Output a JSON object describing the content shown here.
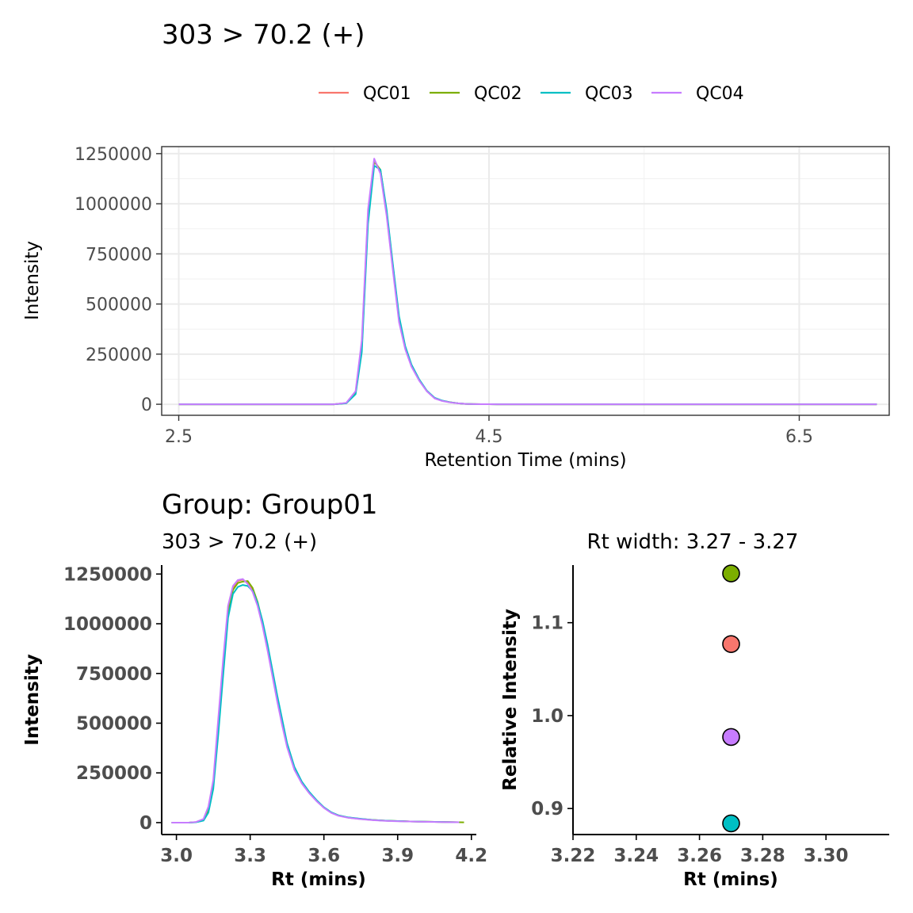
{
  "chart_data": [
    {
      "type": "line",
      "title": "303 > 70.2 (+)",
      "xlabel": "Retention Time (mins)",
      "ylabel": "Intensity",
      "xlim": [
        2.39,
        7.08
      ],
      "ylim": [
        -55000,
        1285000
      ],
      "x_ticks": [
        2.5,
        4.5,
        6.5
      ],
      "x_tick_labels": [
        "2.5",
        "4.5",
        "6.5"
      ],
      "y_ticks": [
        0,
        250000,
        500000,
        750000,
        1000000,
        1250000
      ],
      "y_tick_labels": [
        "0",
        "250000",
        "500000",
        "750000",
        "1000000",
        "1250000"
      ],
      "legend_position": "top",
      "grid": true,
      "series": [
        {
          "name": "QC01",
          "color": "#F8766D",
          "x": [
            2.5,
            3.0,
            3.5,
            3.58,
            3.64,
            3.68,
            3.72,
            3.76,
            3.8,
            3.84,
            3.88,
            3.92,
            3.96,
            4.0,
            4.05,
            4.1,
            4.15,
            4.2,
            4.25,
            4.3,
            4.35,
            4.4,
            4.45,
            4.5,
            4.55,
            4.6,
            4.7,
            4.8,
            4.9,
            5.0,
            5.2,
            5.5,
            6.0,
            6.5,
            7.0
          ],
          "y": [
            0,
            0,
            0,
            6000,
            60000,
            300000,
            950000,
            1220000,
            1160000,
            950000,
            680000,
            420000,
            280000,
            190000,
            120000,
            65000,
            30000,
            17000,
            10000,
            5000,
            2000,
            800,
            300,
            100,
            0,
            0,
            0,
            0,
            0,
            0,
            0,
            0,
            0,
            0,
            0
          ]
        },
        {
          "name": "QC02",
          "color": "#7CAE00",
          "x": [
            2.5,
            3.0,
            3.5,
            3.58,
            3.64,
            3.68,
            3.72,
            3.76,
            3.8,
            3.84,
            3.88,
            3.92,
            3.96,
            4.0,
            4.05,
            4.1,
            4.15,
            4.2,
            4.25,
            4.3,
            4.35,
            4.4,
            4.45,
            4.5,
            4.55,
            4.6,
            4.7,
            4.8,
            4.9,
            5.0,
            5.2,
            5.5,
            6.0,
            6.5,
            7.0
          ],
          "y": [
            0,
            0,
            0,
            6000,
            55000,
            280000,
            930000,
            1210000,
            1170000,
            960000,
            690000,
            430000,
            285000,
            195000,
            122000,
            66000,
            31000,
            17000,
            10000,
            5000,
            2000,
            800,
            300,
            100,
            0,
            0,
            0,
            0,
            0,
            0,
            0,
            0,
            0,
            0,
            0
          ]
        },
        {
          "name": "QC03",
          "color": "#00BFC4",
          "x": [
            2.5,
            3.0,
            3.5,
            3.58,
            3.64,
            3.68,
            3.72,
            3.76,
            3.8,
            3.84,
            3.88,
            3.92,
            3.96,
            4.0,
            4.05,
            4.1,
            4.15,
            4.2,
            4.25,
            4.3,
            4.35,
            4.4,
            4.45,
            4.5,
            4.55,
            4.6,
            4.7,
            4.8,
            4.9,
            5.0,
            5.2,
            5.5,
            6.0,
            6.5,
            7.0
          ],
          "y": [
            0,
            0,
            0,
            5000,
            50000,
            260000,
            900000,
            1190000,
            1170000,
            970000,
            700000,
            440000,
            290000,
            198000,
            124000,
            67000,
            32000,
            18000,
            10000,
            5000,
            2000,
            800,
            300,
            100,
            0,
            0,
            0,
            0,
            0,
            0,
            0,
            0,
            0,
            0,
            0
          ]
        },
        {
          "name": "QC04",
          "color": "#C77CFF",
          "x": [
            2.5,
            3.0,
            3.5,
            3.58,
            3.64,
            3.68,
            3.72,
            3.76,
            3.8,
            3.84,
            3.88,
            3.92,
            3.96,
            4.0,
            4.05,
            4.1,
            4.15,
            4.2,
            4.25,
            4.3,
            4.35,
            4.4,
            4.45,
            4.5,
            4.55,
            4.6,
            4.7,
            4.8,
            4.9,
            5.0,
            5.2,
            5.5,
            6.0,
            6.5,
            7.0
          ],
          "y": [
            0,
            0,
            0,
            7000,
            65000,
            320000,
            970000,
            1225000,
            1150000,
            940000,
            670000,
            410000,
            275000,
            188000,
            118000,
            64000,
            29000,
            16000,
            9000,
            5000,
            2000,
            800,
            300,
            100,
            0,
            0,
            0,
            0,
            0,
            0,
            0,
            0,
            0,
            0,
            0
          ]
        }
      ]
    },
    {
      "type": "line",
      "group_title": "Group: Group01",
      "title": "303 > 70.2 (+)",
      "xlabel": "Rt (mins)",
      "ylabel": "Intensity",
      "xlim": [
        2.94,
        4.22
      ],
      "ylim": [
        -60000,
        1295000
      ],
      "x_ticks": [
        3.0,
        3.3,
        3.6,
        3.9,
        4.2
      ],
      "x_tick_labels": [
        "3.0",
        "3.3",
        "3.6",
        "3.9",
        "4.2"
      ],
      "y_ticks": [
        0,
        250000,
        500000,
        750000,
        1000000,
        1250000
      ],
      "y_tick_labels": [
        "0",
        "250000",
        "500000",
        "750000",
        "1000000",
        "1250000"
      ],
      "grid": false,
      "series": [
        {
          "name": "QC01",
          "color": "#F8766D",
          "x": [
            2.98,
            3.05,
            3.08,
            3.11,
            3.13,
            3.15,
            3.17,
            3.19,
            3.21,
            3.23,
            3.25,
            3.27,
            3.29,
            3.31,
            3.33,
            3.35,
            3.37,
            3.39,
            3.41,
            3.43,
            3.45,
            3.48,
            3.51,
            3.54,
            3.57,
            3.6,
            3.63,
            3.66,
            3.7,
            3.75,
            3.8,
            3.85,
            3.9,
            3.95,
            4.0,
            4.05,
            4.1,
            4.15
          ],
          "y": [
            0,
            0,
            3000,
            15000,
            70000,
            200000,
            500000,
            800000,
            1080000,
            1180000,
            1215000,
            1222000,
            1205000,
            1170000,
            1100000,
            1000000,
            880000,
            750000,
            620000,
            500000,
            390000,
            270000,
            200000,
            150000,
            110000,
            75000,
            50000,
            35000,
            25000,
            18000,
            13000,
            10000,
            8000,
            6000,
            5000,
            4000,
            3000,
            2000
          ]
        },
        {
          "name": "QC02",
          "color": "#7CAE00",
          "x": [
            2.98,
            3.05,
            3.08,
            3.11,
            3.13,
            3.15,
            3.17,
            3.19,
            3.21,
            3.23,
            3.25,
            3.27,
            3.29,
            3.31,
            3.33,
            3.35,
            3.37,
            3.39,
            3.41,
            3.43,
            3.45,
            3.48,
            3.51,
            3.54,
            3.57,
            3.6,
            3.63,
            3.66,
            3.7,
            3.75,
            3.8,
            3.85,
            3.9,
            3.95,
            4.0,
            4.05,
            4.1,
            4.15,
            4.17
          ],
          "y": [
            0,
            0,
            2500,
            12000,
            60000,
            185000,
            470000,
            770000,
            1060000,
            1170000,
            1205000,
            1212000,
            1215000,
            1180000,
            1110000,
            1010000,
            890000,
            760000,
            630000,
            510000,
            395000,
            275000,
            203000,
            152000,
            111000,
            76000,
            51000,
            36000,
            25000,
            18000,
            13000,
            10000,
            8000,
            6000,
            5000,
            4000,
            3000,
            2000,
            1500
          ]
        },
        {
          "name": "QC03",
          "color": "#00BFC4",
          "x": [
            2.98,
            3.05,
            3.08,
            3.11,
            3.13,
            3.15,
            3.17,
            3.19,
            3.21,
            3.23,
            3.25,
            3.27,
            3.29,
            3.31,
            3.33,
            3.35,
            3.37,
            3.39,
            3.41,
            3.43,
            3.45,
            3.48,
            3.51,
            3.54,
            3.57,
            3.6,
            3.63,
            3.66,
            3.7,
            3.75,
            3.8,
            3.85,
            3.9,
            3.95,
            4.0,
            4.05,
            4.1,
            4.15
          ],
          "y": [
            0,
            0,
            2000,
            10000,
            50000,
            170000,
            440000,
            740000,
            1030000,
            1150000,
            1185000,
            1195000,
            1190000,
            1165000,
            1105000,
            1015000,
            900000,
            770000,
            640000,
            520000,
            400000,
            280000,
            206000,
            155000,
            113000,
            77000,
            52000,
            36000,
            26000,
            19000,
            13000,
            10000,
            8000,
            6000,
            5000,
            4000,
            3000,
            2000
          ]
        },
        {
          "name": "QC04",
          "color": "#C77CFF",
          "x": [
            2.98,
            3.05,
            3.08,
            3.11,
            3.13,
            3.15,
            3.17,
            3.19,
            3.21,
            3.23,
            3.25,
            3.27,
            3.29,
            3.31,
            3.33,
            3.35,
            3.37,
            3.39,
            3.41,
            3.43,
            3.45,
            3.48,
            3.51,
            3.54,
            3.57,
            3.6,
            3.63,
            3.66,
            3.7,
            3.75,
            3.8,
            3.85,
            3.9,
            3.95,
            4.0,
            4.05,
            4.1,
            4.15
          ],
          "y": [
            0,
            0,
            3500,
            18000,
            80000,
            215000,
            520000,
            820000,
            1090000,
            1190000,
            1220000,
            1225000,
            1200000,
            1160000,
            1090000,
            990000,
            870000,
            740000,
            610000,
            490000,
            380000,
            265000,
            197000,
            148000,
            108000,
            74000,
            49000,
            34000,
            24000,
            17000,
            12000,
            9000,
            7000,
            5500,
            4500,
            3500,
            2500,
            1800
          ]
        }
      ]
    },
    {
      "type": "scatter",
      "title": "Rt width: 3.27 - 3.27",
      "xlabel": "Rt (mins)",
      "ylabel": "Relative Intensity",
      "xlim": [
        3.22,
        3.32
      ],
      "ylim": [
        0.872,
        1.162
      ],
      "x_ticks": [
        3.22,
        3.24,
        3.26,
        3.28,
        3.3
      ],
      "x_tick_labels": [
        "3.22",
        "3.24",
        "3.26",
        "3.28",
        "3.30"
      ],
      "y_ticks": [
        0.9,
        1.0,
        1.1
      ],
      "y_tick_labels": [
        "0.9",
        "1.0",
        "1.1"
      ],
      "grid": false,
      "points": [
        {
          "name": "QC02",
          "x": 3.27,
          "y": 1.153,
          "color": "#7CAE00"
        },
        {
          "name": "QC01",
          "x": 3.27,
          "y": 1.077,
          "color": "#F8766D"
        },
        {
          "name": "QC04",
          "x": 3.27,
          "y": 0.977,
          "color": "#C77CFF"
        },
        {
          "name": "QC03",
          "x": 3.27,
          "y": 0.884,
          "color": "#00BFC4"
        }
      ]
    }
  ]
}
